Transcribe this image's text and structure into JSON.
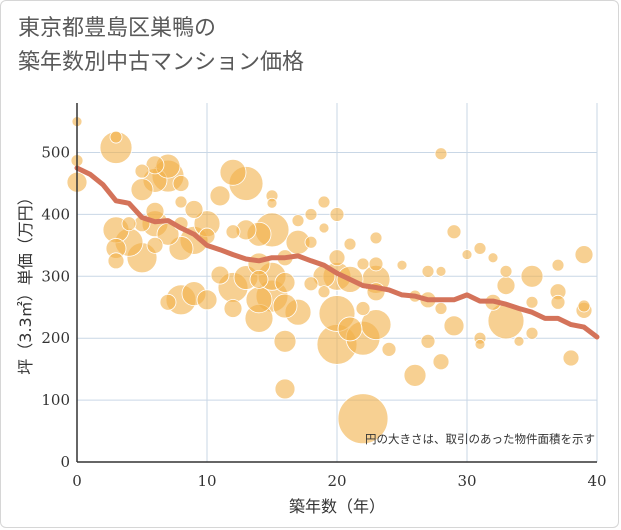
{
  "chart_data": {
    "type": "scatter",
    "title": "東京都豊島区巣鴨の\n築年数別中古マンション価格",
    "xlabel": "築年数（年）",
    "ylabel": "坪（3.3㎡）単価（万円）",
    "xlim": [
      0,
      40
    ],
    "ylim": [
      0,
      580
    ],
    "xticks": [
      0,
      10,
      20,
      30,
      40
    ],
    "yticks": [
      0,
      100,
      200,
      300,
      400,
      500
    ],
    "grid": true,
    "note": "円の大きさは、取引のあった物件面積を示す",
    "colors": {
      "bubble": "#F2B04A",
      "trend": "#D4735A",
      "grid": "#c9d7e6"
    },
    "series": [
      {
        "kind": "bubble",
        "points": [
          {
            "x": 0,
            "y": 550,
            "s": 5
          },
          {
            "x": 0,
            "y": 487,
            "s": 6
          },
          {
            "x": 0,
            "y": 452,
            "s": 10
          },
          {
            "x": 3,
            "y": 525,
            "s": 6
          },
          {
            "x": 3,
            "y": 508,
            "s": 16
          },
          {
            "x": 3,
            "y": 375,
            "s": 13
          },
          {
            "x": 3,
            "y": 345,
            "s": 10
          },
          {
            "x": 3,
            "y": 325,
            "s": 8
          },
          {
            "x": 4,
            "y": 385,
            "s": 7
          },
          {
            "x": 4,
            "y": 355,
            "s": 14
          },
          {
            "x": 5,
            "y": 470,
            "s": 7
          },
          {
            "x": 5,
            "y": 440,
            "s": 11
          },
          {
            "x": 5,
            "y": 385,
            "s": 8
          },
          {
            "x": 5,
            "y": 330,
            "s": 15
          },
          {
            "x": 6,
            "y": 480,
            "s": 9
          },
          {
            "x": 6,
            "y": 455,
            "s": 12
          },
          {
            "x": 6,
            "y": 405,
            "s": 9
          },
          {
            "x": 6,
            "y": 385,
            "s": 13
          },
          {
            "x": 6,
            "y": 350,
            "s": 8
          },
          {
            "x": 7,
            "y": 478,
            "s": 12
          },
          {
            "x": 7,
            "y": 462,
            "s": 16
          },
          {
            "x": 7,
            "y": 368,
            "s": 11
          },
          {
            "x": 7,
            "y": 258,
            "s": 8
          },
          {
            "x": 8,
            "y": 450,
            "s": 8
          },
          {
            "x": 8,
            "y": 420,
            "s": 6
          },
          {
            "x": 8,
            "y": 385,
            "s": 7
          },
          {
            "x": 8,
            "y": 345,
            "s": 12
          },
          {
            "x": 8,
            "y": 262,
            "s": 15
          },
          {
            "x": 9,
            "y": 408,
            "s": 9
          },
          {
            "x": 9,
            "y": 358,
            "s": 14
          },
          {
            "x": 9,
            "y": 272,
            "s": 12
          },
          {
            "x": 10,
            "y": 385,
            "s": 13
          },
          {
            "x": 10,
            "y": 365,
            "s": 8
          },
          {
            "x": 10,
            "y": 262,
            "s": 10
          },
          {
            "x": 11,
            "y": 430,
            "s": 10
          },
          {
            "x": 11,
            "y": 302,
            "s": 9
          },
          {
            "x": 12,
            "y": 468,
            "s": 13
          },
          {
            "x": 12,
            "y": 372,
            "s": 7
          },
          {
            "x": 12,
            "y": 282,
            "s": 15
          },
          {
            "x": 12,
            "y": 248,
            "s": 9
          },
          {
            "x": 13,
            "y": 450,
            "s": 17
          },
          {
            "x": 13,
            "y": 375,
            "s": 10
          },
          {
            "x": 13,
            "y": 298,
            "s": 12
          },
          {
            "x": 14,
            "y": 368,
            "s": 12
          },
          {
            "x": 14,
            "y": 320,
            "s": 11
          },
          {
            "x": 14,
            "y": 295,
            "s": 9
          },
          {
            "x": 14,
            "y": 262,
            "s": 13
          },
          {
            "x": 14,
            "y": 232,
            "s": 14
          },
          {
            "x": 15,
            "y": 430,
            "s": 6
          },
          {
            "x": 15,
            "y": 418,
            "s": 5
          },
          {
            "x": 15,
            "y": 375,
            "s": 17
          },
          {
            "x": 15,
            "y": 300,
            "s": 14
          },
          {
            "x": 15,
            "y": 268,
            "s": 16
          },
          {
            "x": 16,
            "y": 330,
            "s": 8
          },
          {
            "x": 16,
            "y": 290,
            "s": 10
          },
          {
            "x": 16,
            "y": 252,
            "s": 12
          },
          {
            "x": 16,
            "y": 195,
            "s": 11
          },
          {
            "x": 16,
            "y": 118,
            "s": 10
          },
          {
            "x": 17,
            "y": 390,
            "s": 6
          },
          {
            "x": 17,
            "y": 355,
            "s": 12
          },
          {
            "x": 17,
            "y": 242,
            "s": 13
          },
          {
            "x": 18,
            "y": 400,
            "s": 6
          },
          {
            "x": 18,
            "y": 355,
            "s": 6
          },
          {
            "x": 18,
            "y": 288,
            "s": 7
          },
          {
            "x": 19,
            "y": 420,
            "s": 6
          },
          {
            "x": 19,
            "y": 378,
            "s": 5
          },
          {
            "x": 19,
            "y": 300,
            "s": 11
          },
          {
            "x": 19,
            "y": 275,
            "s": 6
          },
          {
            "x": 20,
            "y": 400,
            "s": 7
          },
          {
            "x": 20,
            "y": 330,
            "s": 8
          },
          {
            "x": 20,
            "y": 300,
            "s": 14
          },
          {
            "x": 20,
            "y": 240,
            "s": 18
          },
          {
            "x": 20,
            "y": 190,
            "s": 20
          },
          {
            "x": 21,
            "y": 352,
            "s": 6
          },
          {
            "x": 21,
            "y": 295,
            "s": 13
          },
          {
            "x": 21,
            "y": 215,
            "s": 12
          },
          {
            "x": 22,
            "y": 320,
            "s": 6
          },
          {
            "x": 22,
            "y": 248,
            "s": 7
          },
          {
            "x": 22,
            "y": 200,
            "s": 17
          },
          {
            "x": 22,
            "y": 70,
            "s": 25
          },
          {
            "x": 23,
            "y": 362,
            "s": 6
          },
          {
            "x": 23,
            "y": 320,
            "s": 7
          },
          {
            "x": 23,
            "y": 295,
            "s": 14
          },
          {
            "x": 23,
            "y": 275,
            "s": 9
          },
          {
            "x": 23,
            "y": 222,
            "s": 15
          },
          {
            "x": 24,
            "y": 182,
            "s": 7
          },
          {
            "x": 25,
            "y": 318,
            "s": 5
          },
          {
            "x": 26,
            "y": 268,
            "s": 6
          },
          {
            "x": 26,
            "y": 140,
            "s": 11
          },
          {
            "x": 27,
            "y": 308,
            "s": 6
          },
          {
            "x": 27,
            "y": 262,
            "s": 8
          },
          {
            "x": 27,
            "y": 195,
            "s": 7
          },
          {
            "x": 28,
            "y": 498,
            "s": 6
          },
          {
            "x": 28,
            "y": 308,
            "s": 5
          },
          {
            "x": 28,
            "y": 248,
            "s": 6
          },
          {
            "x": 28,
            "y": 162,
            "s": 8
          },
          {
            "x": 29,
            "y": 372,
            "s": 7
          },
          {
            "x": 29,
            "y": 220,
            "s": 10
          },
          {
            "x": 30,
            "y": 335,
            "s": 5
          },
          {
            "x": 31,
            "y": 345,
            "s": 6
          },
          {
            "x": 31,
            "y": 200,
            "s": 6
          },
          {
            "x": 31,
            "y": 190,
            "s": 5
          },
          {
            "x": 32,
            "y": 330,
            "s": 5
          },
          {
            "x": 32,
            "y": 258,
            "s": 8
          },
          {
            "x": 33,
            "y": 308,
            "s": 6
          },
          {
            "x": 33,
            "y": 285,
            "s": 9
          },
          {
            "x": 33,
            "y": 228,
            "s": 18
          },
          {
            "x": 34,
            "y": 195,
            "s": 5
          },
          {
            "x": 35,
            "y": 300,
            "s": 11
          },
          {
            "x": 35,
            "y": 258,
            "s": 6
          },
          {
            "x": 35,
            "y": 208,
            "s": 6
          },
          {
            "x": 37,
            "y": 318,
            "s": 6
          },
          {
            "x": 37,
            "y": 275,
            "s": 8
          },
          {
            "x": 37,
            "y": 258,
            "s": 7
          },
          {
            "x": 38,
            "y": 168,
            "s": 8
          },
          {
            "x": 39,
            "y": 335,
            "s": 9
          },
          {
            "x": 39,
            "y": 252,
            "s": 6
          },
          {
            "x": 39,
            "y": 245,
            "s": 8
          }
        ]
      },
      {
        "kind": "line",
        "x": [
          0,
          1,
          2,
          3,
          4,
          5,
          6,
          7,
          8,
          9,
          10,
          11,
          12,
          13,
          14,
          15,
          16,
          17,
          18,
          19,
          20,
          21,
          22,
          23,
          24,
          25,
          26,
          27,
          28,
          29,
          30,
          31,
          32,
          33,
          34,
          35,
          36,
          37,
          38,
          39,
          40
        ],
        "y": [
          475,
          465,
          448,
          422,
          418,
          395,
          388,
          390,
          378,
          368,
          350,
          343,
          335,
          328,
          325,
          330,
          330,
          333,
          325,
          318,
          305,
          295,
          285,
          282,
          278,
          270,
          268,
          262,
          262,
          262,
          270,
          260,
          260,
          255,
          248,
          242,
          232,
          232,
          222,
          218,
          202
        ]
      }
    ]
  }
}
